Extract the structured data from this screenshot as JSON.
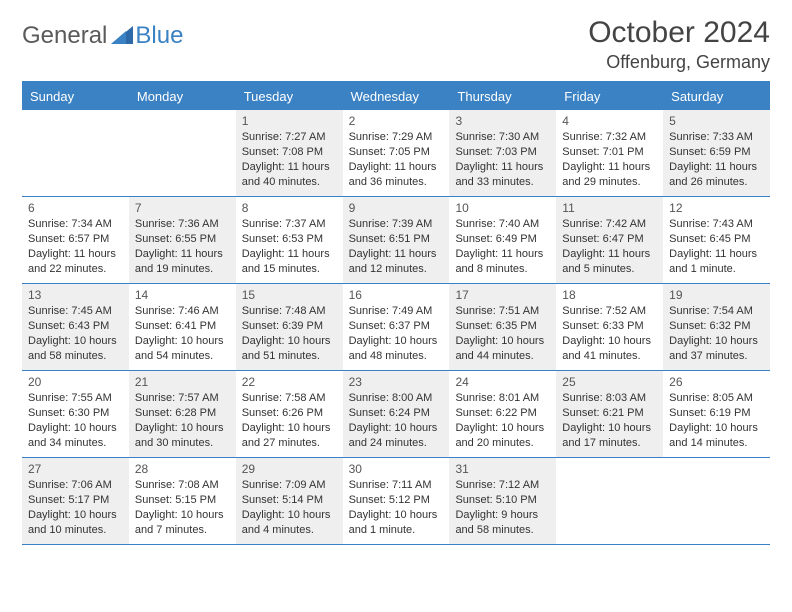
{
  "logo": {
    "text1": "General",
    "text2": "Blue"
  },
  "title": "October 2024",
  "location": "Offenburg, Germany",
  "colors": {
    "header_bg": "#3a82c4",
    "header_text": "#ffffff",
    "shaded_bg": "#efefef",
    "border": "#3a82c4",
    "text": "#333333"
  },
  "day_headers": [
    "Sunday",
    "Monday",
    "Tuesday",
    "Wednesday",
    "Thursday",
    "Friday",
    "Saturday"
  ],
  "weeks": [
    [
      {
        "empty": true
      },
      {
        "empty": true
      },
      {
        "num": "1",
        "shaded": true,
        "sunrise": "Sunrise: 7:27 AM",
        "sunset": "Sunset: 7:08 PM",
        "daylight": "Daylight: 11 hours and 40 minutes."
      },
      {
        "num": "2",
        "shaded": false,
        "sunrise": "Sunrise: 7:29 AM",
        "sunset": "Sunset: 7:05 PM",
        "daylight": "Daylight: 11 hours and 36 minutes."
      },
      {
        "num": "3",
        "shaded": true,
        "sunrise": "Sunrise: 7:30 AM",
        "sunset": "Sunset: 7:03 PM",
        "daylight": "Daylight: 11 hours and 33 minutes."
      },
      {
        "num": "4",
        "shaded": false,
        "sunrise": "Sunrise: 7:32 AM",
        "sunset": "Sunset: 7:01 PM",
        "daylight": "Daylight: 11 hours and 29 minutes."
      },
      {
        "num": "5",
        "shaded": true,
        "sunrise": "Sunrise: 7:33 AM",
        "sunset": "Sunset: 6:59 PM",
        "daylight": "Daylight: 11 hours and 26 minutes."
      }
    ],
    [
      {
        "num": "6",
        "shaded": false,
        "sunrise": "Sunrise: 7:34 AM",
        "sunset": "Sunset: 6:57 PM",
        "daylight": "Daylight: 11 hours and 22 minutes."
      },
      {
        "num": "7",
        "shaded": true,
        "sunrise": "Sunrise: 7:36 AM",
        "sunset": "Sunset: 6:55 PM",
        "daylight": "Daylight: 11 hours and 19 minutes."
      },
      {
        "num": "8",
        "shaded": false,
        "sunrise": "Sunrise: 7:37 AM",
        "sunset": "Sunset: 6:53 PM",
        "daylight": "Daylight: 11 hours and 15 minutes."
      },
      {
        "num": "9",
        "shaded": true,
        "sunrise": "Sunrise: 7:39 AM",
        "sunset": "Sunset: 6:51 PM",
        "daylight": "Daylight: 11 hours and 12 minutes."
      },
      {
        "num": "10",
        "shaded": false,
        "sunrise": "Sunrise: 7:40 AM",
        "sunset": "Sunset: 6:49 PM",
        "daylight": "Daylight: 11 hours and 8 minutes."
      },
      {
        "num": "11",
        "shaded": true,
        "sunrise": "Sunrise: 7:42 AM",
        "sunset": "Sunset: 6:47 PM",
        "daylight": "Daylight: 11 hours and 5 minutes."
      },
      {
        "num": "12",
        "shaded": false,
        "sunrise": "Sunrise: 7:43 AM",
        "sunset": "Sunset: 6:45 PM",
        "daylight": "Daylight: 11 hours and 1 minute."
      }
    ],
    [
      {
        "num": "13",
        "shaded": true,
        "sunrise": "Sunrise: 7:45 AM",
        "sunset": "Sunset: 6:43 PM",
        "daylight": "Daylight: 10 hours and 58 minutes."
      },
      {
        "num": "14",
        "shaded": false,
        "sunrise": "Sunrise: 7:46 AM",
        "sunset": "Sunset: 6:41 PM",
        "daylight": "Daylight: 10 hours and 54 minutes."
      },
      {
        "num": "15",
        "shaded": true,
        "sunrise": "Sunrise: 7:48 AM",
        "sunset": "Sunset: 6:39 PM",
        "daylight": "Daylight: 10 hours and 51 minutes."
      },
      {
        "num": "16",
        "shaded": false,
        "sunrise": "Sunrise: 7:49 AM",
        "sunset": "Sunset: 6:37 PM",
        "daylight": "Daylight: 10 hours and 48 minutes."
      },
      {
        "num": "17",
        "shaded": true,
        "sunrise": "Sunrise: 7:51 AM",
        "sunset": "Sunset: 6:35 PM",
        "daylight": "Daylight: 10 hours and 44 minutes."
      },
      {
        "num": "18",
        "shaded": false,
        "sunrise": "Sunrise: 7:52 AM",
        "sunset": "Sunset: 6:33 PM",
        "daylight": "Daylight: 10 hours and 41 minutes."
      },
      {
        "num": "19",
        "shaded": true,
        "sunrise": "Sunrise: 7:54 AM",
        "sunset": "Sunset: 6:32 PM",
        "daylight": "Daylight: 10 hours and 37 minutes."
      }
    ],
    [
      {
        "num": "20",
        "shaded": false,
        "sunrise": "Sunrise: 7:55 AM",
        "sunset": "Sunset: 6:30 PM",
        "daylight": "Daylight: 10 hours and 34 minutes."
      },
      {
        "num": "21",
        "shaded": true,
        "sunrise": "Sunrise: 7:57 AM",
        "sunset": "Sunset: 6:28 PM",
        "daylight": "Daylight: 10 hours and 30 minutes."
      },
      {
        "num": "22",
        "shaded": false,
        "sunrise": "Sunrise: 7:58 AM",
        "sunset": "Sunset: 6:26 PM",
        "daylight": "Daylight: 10 hours and 27 minutes."
      },
      {
        "num": "23",
        "shaded": true,
        "sunrise": "Sunrise: 8:00 AM",
        "sunset": "Sunset: 6:24 PM",
        "daylight": "Daylight: 10 hours and 24 minutes."
      },
      {
        "num": "24",
        "shaded": false,
        "sunrise": "Sunrise: 8:01 AM",
        "sunset": "Sunset: 6:22 PM",
        "daylight": "Daylight: 10 hours and 20 minutes."
      },
      {
        "num": "25",
        "shaded": true,
        "sunrise": "Sunrise: 8:03 AM",
        "sunset": "Sunset: 6:21 PM",
        "daylight": "Daylight: 10 hours and 17 minutes."
      },
      {
        "num": "26",
        "shaded": false,
        "sunrise": "Sunrise: 8:05 AM",
        "sunset": "Sunset: 6:19 PM",
        "daylight": "Daylight: 10 hours and 14 minutes."
      }
    ],
    [
      {
        "num": "27",
        "shaded": true,
        "sunrise": "Sunrise: 7:06 AM",
        "sunset": "Sunset: 5:17 PM",
        "daylight": "Daylight: 10 hours and 10 minutes."
      },
      {
        "num": "28",
        "shaded": false,
        "sunrise": "Sunrise: 7:08 AM",
        "sunset": "Sunset: 5:15 PM",
        "daylight": "Daylight: 10 hours and 7 minutes."
      },
      {
        "num": "29",
        "shaded": true,
        "sunrise": "Sunrise: 7:09 AM",
        "sunset": "Sunset: 5:14 PM",
        "daylight": "Daylight: 10 hours and 4 minutes."
      },
      {
        "num": "30",
        "shaded": false,
        "sunrise": "Sunrise: 7:11 AM",
        "sunset": "Sunset: 5:12 PM",
        "daylight": "Daylight: 10 hours and 1 minute."
      },
      {
        "num": "31",
        "shaded": true,
        "sunrise": "Sunrise: 7:12 AM",
        "sunset": "Sunset: 5:10 PM",
        "daylight": "Daylight: 9 hours and 58 minutes."
      },
      {
        "empty": true
      },
      {
        "empty": true
      }
    ]
  ]
}
